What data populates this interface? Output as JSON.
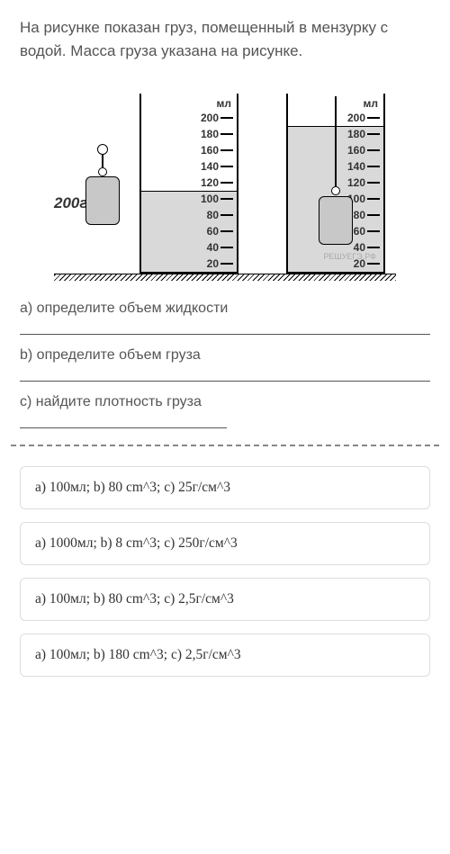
{
  "question": "На рисунке показан груз, помещенный в мензурку с водой. Масса груза указана на рисунке.",
  "figure": {
    "unit_label": "мл",
    "mass_label": "200г",
    "ticks": [
      {
        "label": "200",
        "pos": 0
      },
      {
        "label": "180",
        "pos": 18
      },
      {
        "label": "160",
        "pos": 36
      },
      {
        "label": "140",
        "pos": 54
      },
      {
        "label": "120",
        "pos": 72
      },
      {
        "label": "100",
        "pos": 90
      },
      {
        "label": "80",
        "pos": 108
      },
      {
        "label": "60",
        "pos": 126
      },
      {
        "label": "40",
        "pos": 144
      },
      {
        "label": "20",
        "pos": 162
      }
    ],
    "water1_level": 100,
    "water2_level": 180,
    "colors": {
      "water": "#d9d9d9",
      "load": "#c8c8c8",
      "line": "#000"
    },
    "watermark": "РЕШУЕГЭ.РФ"
  },
  "subquestions": {
    "a": "a) определите объем жидкости",
    "b": "b) определите объем груза",
    "c": "c) найдите плотность груза"
  },
  "options": [
    "a) 100мл; b) 80 cm^3; c) 25г/см^3",
    "a) 1000мл; b) 8 cm^3; c) 250г/см^3",
    "a) 100мл; b) 80 cm^3; c) 2,5г/см^3",
    "a) 100мл; b) 180 cm^3; c) 2,5г/см^3"
  ]
}
